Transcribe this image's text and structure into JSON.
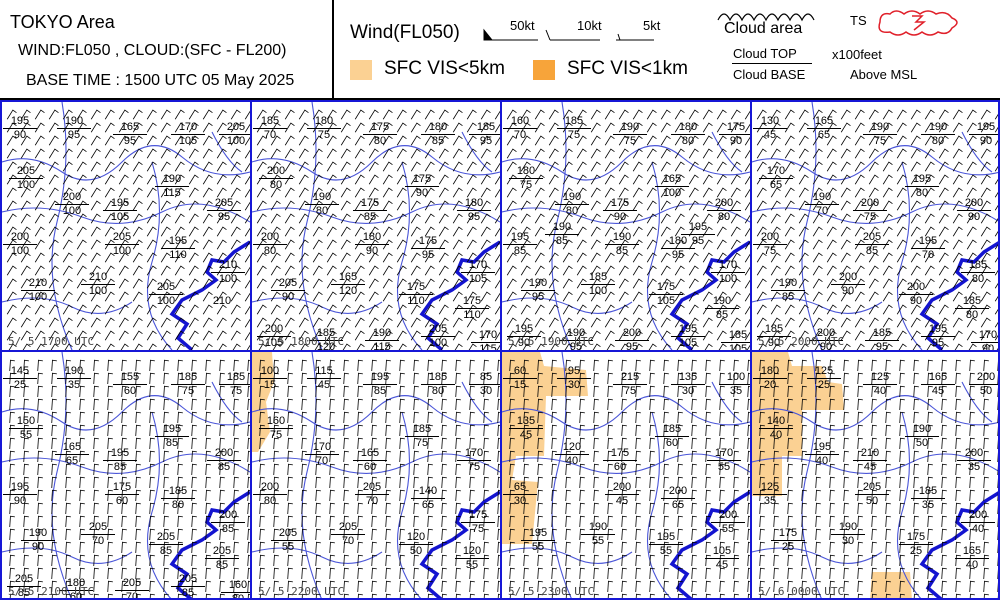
{
  "header": {
    "area": "TOKYO Area",
    "subtitle": "WIND:FL050 , CLOUD:(SFC - FL200)",
    "base_time": "BASE TIME : 1500 UTC 05 May 2025"
  },
  "legend": {
    "wind_title": "Wind(FL050)",
    "barb_labels": [
      "50kt",
      "10kt",
      "5kt"
    ],
    "vis5": "SFC VIS<5km",
    "vis1": "SFC VIS<1km",
    "vis5_color": "#fbd193",
    "vis1_color": "#f7a43a",
    "cloud_area": "Cloud area",
    "cloud_top": "Cloud TOP",
    "cloud_base": "Cloud BASE",
    "unit": "x100feet",
    "msl": "Above MSL",
    "ts": "TS",
    "ts_color": "#e0202a"
  },
  "colors": {
    "frame": "#1717d6",
    "river": "#4a55d8",
    "sea": "#1414d0"
  },
  "panels": [
    {
      "time": "5/ 5 1700 UTC",
      "clouds": [
        [
          "195",
          "90"
        ],
        [
          "190",
          "95"
        ],
        [
          "165",
          "95"
        ],
        [
          "170",
          "105"
        ],
        [
          "205",
          "100"
        ],
        [
          "205",
          "100"
        ],
        [
          "200",
          "100"
        ],
        [
          "195",
          "105"
        ],
        [
          "190",
          "115"
        ],
        [
          "205",
          "95"
        ],
        [
          "200",
          "100"
        ],
        [
          "205",
          "100"
        ],
        [
          "195",
          "110"
        ],
        [
          "210",
          "100"
        ],
        [
          "210",
          "100"
        ],
        [
          "210",
          "100"
        ],
        [
          "205",
          "100"
        ],
        [
          "210",
          ""
        ]
      ]
    },
    {
      "time": "5/ 5 1800 UTC",
      "clouds": [
        [
          "185",
          "70"
        ],
        [
          "180",
          "75"
        ],
        [
          "175",
          "80"
        ],
        [
          "180",
          "85"
        ],
        [
          "185",
          "95"
        ],
        [
          "200",
          "80"
        ],
        [
          "190",
          "80"
        ],
        [
          "175",
          "85"
        ],
        [
          "175",
          "90"
        ],
        [
          "180",
          "95"
        ],
        [
          "200",
          "80"
        ],
        [
          "180",
          "90"
        ],
        [
          "175",
          "95"
        ],
        [
          "170",
          "105"
        ],
        [
          "205",
          "90"
        ],
        [
          "165",
          "120"
        ],
        [
          "175",
          "110"
        ],
        [
          "175",
          "110"
        ],
        [
          "200",
          "105"
        ],
        [
          "185",
          "120"
        ],
        [
          "190",
          "115"
        ],
        [
          "205",
          "100"
        ],
        [
          "170",
          "115"
        ]
      ]
    },
    {
      "time": "5/ 5 1900 UTC",
      "clouds": [
        [
          "160",
          "70"
        ],
        [
          "185",
          "75"
        ],
        [
          "190",
          "75"
        ],
        [
          "180",
          "80"
        ],
        [
          "175",
          "90"
        ],
        [
          "180",
          "75"
        ],
        [
          "190",
          "80"
        ],
        [
          "175",
          "90"
        ],
        [
          "165",
          "100"
        ],
        [
          "200",
          "80"
        ],
        [
          "195",
          "85"
        ],
        [
          "190",
          "85"
        ],
        [
          "180",
          "95"
        ],
        [
          "170",
          "100"
        ],
        [
          "190",
          "95"
        ],
        [
          "185",
          "100"
        ],
        [
          "175",
          "105"
        ],
        [
          "190",
          "85"
        ],
        [
          "195",
          "90"
        ],
        [
          "190",
          "95"
        ],
        [
          "200",
          "95"
        ],
        [
          "195",
          "105"
        ],
        [
          "185",
          "105"
        ],
        [
          "190",
          "85"
        ],
        [
          "195",
          "95"
        ]
      ]
    },
    {
      "time": "5/ 5 2000 UTC",
      "clouds": [
        [
          "130",
          "45"
        ],
        [
          "165",
          "65"
        ],
        [
          "190",
          "75"
        ],
        [
          "190",
          "80"
        ],
        [
          "195",
          "90"
        ],
        [
          "170",
          "65"
        ],
        [
          "190",
          "70"
        ],
        [
          "200",
          "75"
        ],
        [
          "195",
          "80"
        ],
        [
          "200",
          "90"
        ],
        [
          "200",
          "75"
        ],
        [
          "205",
          "85"
        ],
        [
          "195",
          "70"
        ],
        [
          "185",
          "80"
        ],
        [
          "190",
          "85"
        ],
        [
          "200",
          "90"
        ],
        [
          "200",
          "90"
        ],
        [
          "185",
          "80"
        ],
        [
          "185",
          "90"
        ],
        [
          "200",
          "90"
        ],
        [
          "185",
          "95"
        ],
        [
          "195",
          "95"
        ],
        [
          "170",
          "90"
        ]
      ]
    },
    {
      "time": "5/ 5 2100 UTC",
      "clouds": [
        [
          "145",
          "25"
        ],
        [
          "190",
          "35"
        ],
        [
          "155",
          "60"
        ],
        [
          "185",
          "75"
        ],
        [
          "185",
          "75"
        ],
        [
          "150",
          "55"
        ],
        [
          "165",
          "65"
        ],
        [
          "195",
          "85"
        ],
        [
          "195",
          "85"
        ],
        [
          "200",
          "85"
        ],
        [
          "195",
          "90"
        ],
        [
          "175",
          "60"
        ],
        [
          "185",
          "80"
        ],
        [
          "200",
          "85"
        ],
        [
          "190",
          "90"
        ],
        [
          "205",
          "70"
        ],
        [
          "205",
          "85"
        ],
        [
          "205",
          "85"
        ],
        [
          "205",
          "85"
        ],
        [
          "180",
          "60"
        ],
        [
          "205",
          "70"
        ],
        [
          "205",
          "85"
        ],
        [
          "160",
          "80"
        ]
      ]
    },
    {
      "time": "5/ 5 2200 UTC",
      "clouds": [
        [
          "100",
          "15"
        ],
        [
          "115",
          "45"
        ],
        [
          "195",
          "85"
        ],
        [
          "185",
          "80"
        ],
        [
          "85",
          "30"
        ],
        [
          "160",
          "75"
        ],
        [
          "170",
          "70"
        ],
        [
          "165",
          "60"
        ],
        [
          "185",
          "75"
        ],
        [
          "170",
          "75"
        ],
        [
          "200",
          "80"
        ],
        [
          "205",
          "70"
        ],
        [
          "140",
          "65"
        ],
        [
          "175",
          "75"
        ],
        [
          "205",
          "55"
        ],
        [
          "205",
          "70"
        ],
        [
          "120",
          "50"
        ],
        [
          "120",
          "55"
        ]
      ]
    },
    {
      "time": "5/ 5 2300 UTC",
      "clouds": [
        [
          "60",
          "15"
        ],
        [
          "95",
          "30"
        ],
        [
          "215",
          "75"
        ],
        [
          "135",
          "30"
        ],
        [
          "100",
          "35"
        ],
        [
          "135",
          "45"
        ],
        [
          "120",
          "40"
        ],
        [
          "175",
          "60"
        ],
        [
          "185",
          "60"
        ],
        [
          "170",
          "55"
        ],
        [
          "65",
          "30"
        ],
        [
          "200",
          "45"
        ],
        [
          "200",
          "65"
        ],
        [
          "200",
          "55"
        ],
        [
          "195",
          "55"
        ],
        [
          "190",
          "55"
        ],
        [
          "195",
          "55"
        ],
        [
          "105",
          "45"
        ]
      ]
    },
    {
      "time": "5/ 6 0000 UTC",
      "clouds": [
        [
          "180",
          "20"
        ],
        [
          "125",
          "25"
        ],
        [
          "125",
          "40"
        ],
        [
          "165",
          "45"
        ],
        [
          "200",
          "50"
        ],
        [
          "140",
          "40"
        ],
        [
          "195",
          "40"
        ],
        [
          "210",
          "45"
        ],
        [
          "190",
          "50"
        ],
        [
          "200",
          "35"
        ],
        [
          "125",
          "35"
        ],
        [
          "205",
          "50"
        ],
        [
          "185",
          "35"
        ],
        [
          "200",
          "40"
        ],
        [
          "175",
          "25"
        ],
        [
          "190",
          "30"
        ],
        [
          "175",
          "25"
        ],
        [
          "165",
          "40"
        ]
      ]
    }
  ]
}
